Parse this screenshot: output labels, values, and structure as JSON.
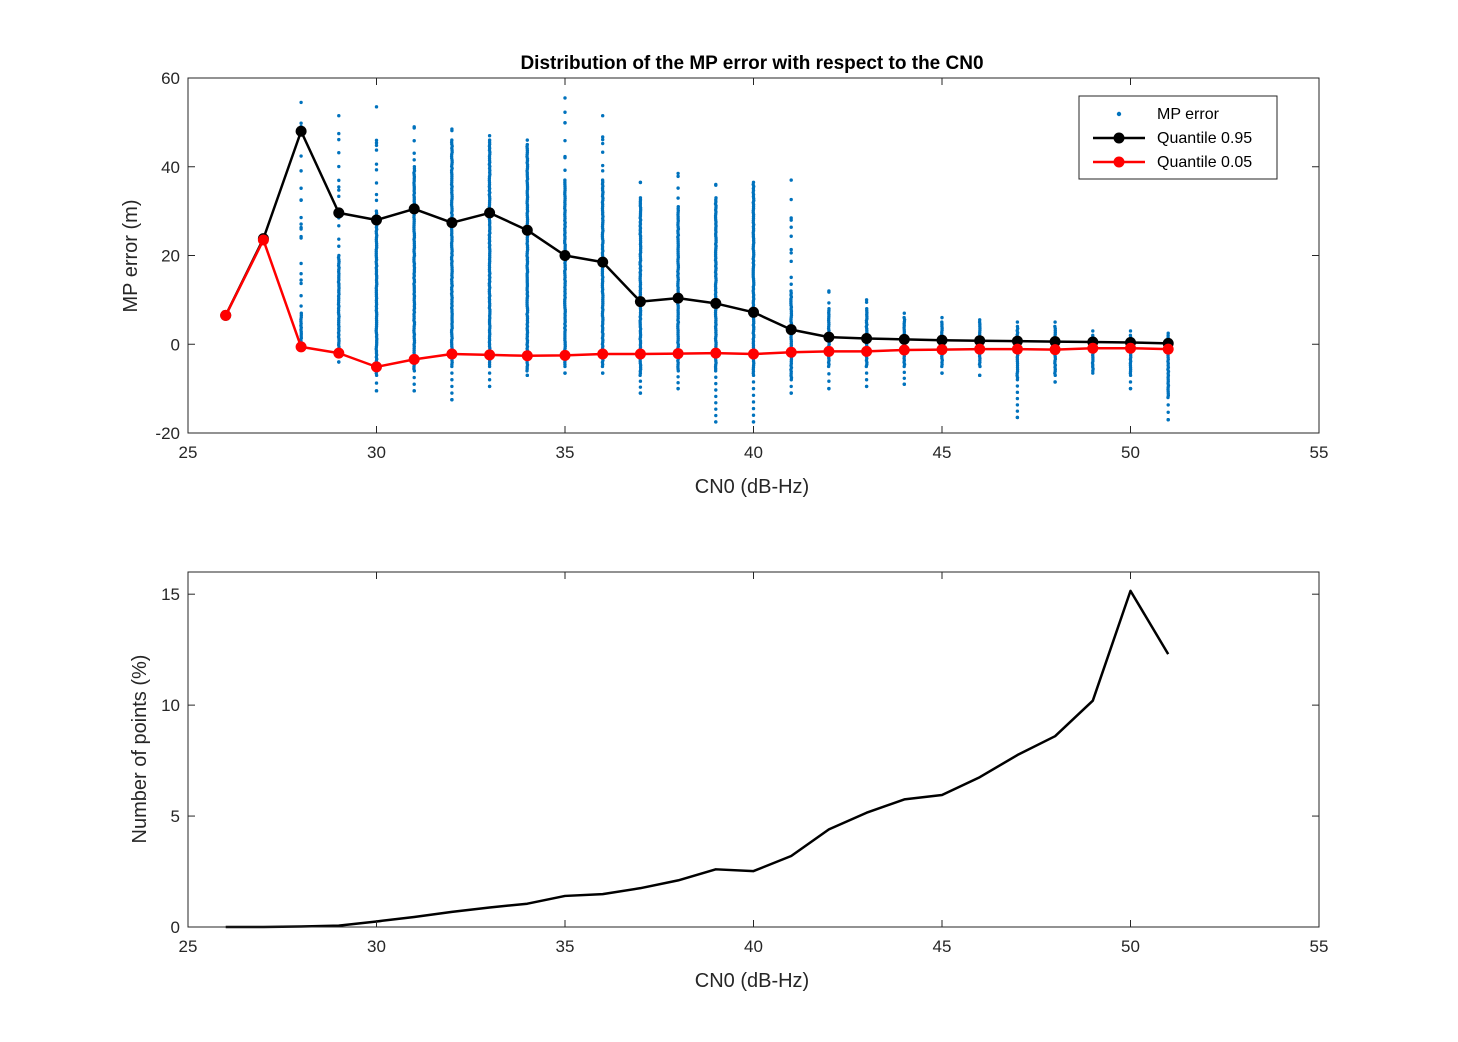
{
  "chart_data": [
    {
      "type": "scatter+line",
      "title": "Distribution of the MP error with respect to the CN0",
      "xlabel": "CN0 (dB-Hz)",
      "ylabel": "MP error (m)",
      "xlim": [
        25,
        55
      ],
      "ylim": [
        -20,
        60
      ],
      "xticks": [
        25,
        30,
        35,
        40,
        45,
        50,
        55
      ],
      "yticks": [
        -20,
        0,
        20,
        40,
        60
      ],
      "grid": false,
      "legend_placement": "top-right",
      "legend": [
        "MP error",
        "Quantile 0.95",
        "Quantile 0.05"
      ],
      "colors": {
        "scatter": "#0072BD",
        "q95": "#000000",
        "q05": "#FF0000"
      },
      "x": [
        26,
        27,
        28,
        29,
        30,
        31,
        32,
        33,
        34,
        35,
        36,
        37,
        38,
        39,
        40,
        41,
        42,
        43,
        44,
        45,
        46,
        47,
        48,
        49,
        50,
        51
      ],
      "series": [
        {
          "name": "Quantile 0.95",
          "values": [
            6.5,
            23.8,
            48.0,
            29.6,
            28.0,
            30.5,
            27.4,
            29.6,
            25.7,
            20.0,
            18.5,
            9.6,
            10.4,
            9.2,
            7.2,
            3.3,
            1.6,
            1.3,
            1.1,
            0.9,
            0.8,
            0.7,
            0.6,
            0.5,
            0.4,
            0.2
          ]
        },
        {
          "name": "Quantile 0.05",
          "values": [
            6.5,
            23.5,
            -0.6,
            -2.0,
            -5.1,
            -3.4,
            -2.2,
            -2.4,
            -2.6,
            -2.5,
            -2.2,
            -2.2,
            -2.1,
            -2.0,
            -2.2,
            -1.8,
            -1.6,
            -1.6,
            -1.3,
            -1.2,
            -1.1,
            -1.1,
            -1.2,
            -0.9,
            -0.9,
            -1.1
          ]
        }
      ],
      "scatter_ranges": [
        {
          "x": 26,
          "min": 6.5,
          "max": 6.5,
          "dense_min": 6.5,
          "dense_max": 6.5
        },
        {
          "x": 27,
          "min": 23.5,
          "max": 23.8,
          "dense_min": 23.5,
          "dense_max": 23.8
        },
        {
          "x": 28,
          "min": -0.6,
          "max": 54.5,
          "dense_min": 0,
          "dense_max": 7
        },
        {
          "x": 29,
          "min": -4,
          "max": 51.5,
          "dense_min": -2,
          "dense_max": 20
        },
        {
          "x": 30,
          "min": -10.5,
          "max": 53.5,
          "dense_min": -7,
          "dense_max": 30
        },
        {
          "x": 31,
          "min": -10.5,
          "max": 49,
          "dense_min": -6,
          "dense_max": 40
        },
        {
          "x": 32,
          "min": -12.5,
          "max": 48.5,
          "dense_min": -5,
          "dense_max": 46
        },
        {
          "x": 33,
          "min": -9.5,
          "max": 47,
          "dense_min": -5,
          "dense_max": 46
        },
        {
          "x": 34,
          "min": -7,
          "max": 46,
          "dense_min": -6,
          "dense_max": 45
        },
        {
          "x": 35,
          "min": -6.5,
          "max": 55.5,
          "dense_min": -5,
          "dense_max": 37
        },
        {
          "x": 36,
          "min": -6.5,
          "max": 51.5,
          "dense_min": -5,
          "dense_max": 37
        },
        {
          "x": 37,
          "min": -11,
          "max": 36.5,
          "dense_min": -7,
          "dense_max": 33
        },
        {
          "x": 38,
          "min": -10,
          "max": 38.5,
          "dense_min": -6,
          "dense_max": 31
        },
        {
          "x": 39,
          "min": -17.5,
          "max": 36,
          "dense_min": -6,
          "dense_max": 33
        },
        {
          "x": 40,
          "min": -17.5,
          "max": 36.5,
          "dense_min": -7,
          "dense_max": 36
        },
        {
          "x": 41,
          "min": -11,
          "max": 37,
          "dense_min": -8,
          "dense_max": 12
        },
        {
          "x": 42,
          "min": -10,
          "max": 12,
          "dense_min": -5,
          "dense_max": 8
        },
        {
          "x": 43,
          "min": -9.5,
          "max": 10,
          "dense_min": -5,
          "dense_max": 8
        },
        {
          "x": 44,
          "min": -9,
          "max": 7,
          "dense_min": -5,
          "dense_max": 6
        },
        {
          "x": 45,
          "min": -6.5,
          "max": 6,
          "dense_min": -5,
          "dense_max": 5
        },
        {
          "x": 46,
          "min": -7,
          "max": 5.5,
          "dense_min": -5,
          "dense_max": 5
        },
        {
          "x": 47,
          "min": -16.5,
          "max": 5,
          "dense_min": -8,
          "dense_max": 4
        },
        {
          "x": 48,
          "min": -8.5,
          "max": 5,
          "dense_min": -7,
          "dense_max": 4
        },
        {
          "x": 49,
          "min": -6.5,
          "max": 3,
          "dense_min": -6,
          "dense_max": 2
        },
        {
          "x": 50,
          "min": -10,
          "max": 3,
          "dense_min": -7,
          "dense_max": 2
        },
        {
          "x": 51,
          "min": -17,
          "max": 2.5,
          "dense_min": -12,
          "dense_max": 2
        }
      ]
    },
    {
      "type": "line",
      "title": "",
      "xlabel": "CN0 (dB-Hz)",
      "ylabel": "Number of points (%)",
      "xlim": [
        25,
        55
      ],
      "ylim": [
        0,
        16
      ],
      "xticks": [
        25,
        30,
        35,
        40,
        45,
        50,
        55
      ],
      "yticks": [
        0,
        5,
        10,
        15
      ],
      "grid": false,
      "colors": {
        "line": "#000000"
      },
      "x": [
        26,
        27,
        28,
        29,
        30,
        31,
        32,
        33,
        34,
        35,
        36,
        37,
        38,
        39,
        40,
        41,
        42,
        43,
        44,
        45,
        46,
        47,
        48,
        49,
        50,
        51
      ],
      "values": [
        0.0,
        0.0,
        0.02,
        0.06,
        0.25,
        0.45,
        0.68,
        0.88,
        1.05,
        1.4,
        1.48,
        1.75,
        2.1,
        2.6,
        2.52,
        3.2,
        4.4,
        5.15,
        5.75,
        5.95,
        6.75,
        7.75,
        8.6,
        10.2,
        15.15,
        12.3
      ]
    }
  ]
}
